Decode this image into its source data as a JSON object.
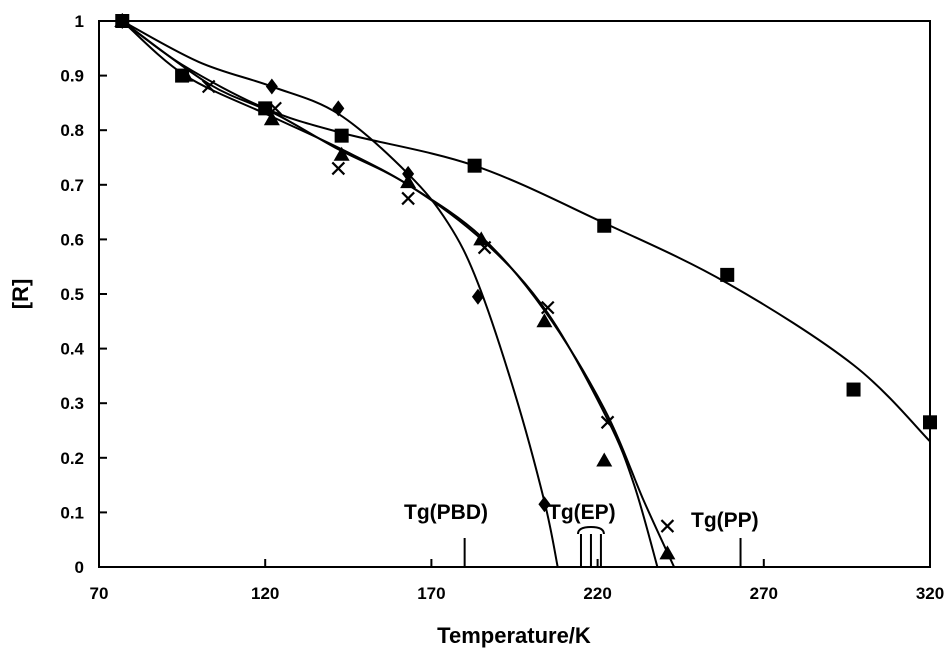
{
  "chart_data": {
    "type": "scatter",
    "xlabel": "Temperature/K",
    "ylabel": "[R]",
    "xlim": [
      70,
      320
    ],
    "ylim": [
      0,
      1
    ],
    "x_ticks": [
      "70",
      "120",
      "170",
      "220",
      "270",
      "320"
    ],
    "y_ticks": [
      "0",
      "0.1",
      "0.2",
      "0.3",
      "0.4",
      "0.5",
      "0.6",
      "0.7",
      "0.8",
      "0.9",
      "1"
    ],
    "grid": false,
    "legend": "none",
    "series": [
      {
        "marker": "square",
        "points": [
          [
            77,
            1.0
          ],
          [
            95,
            0.9
          ],
          [
            120,
            0.84
          ],
          [
            143,
            0.79
          ],
          [
            183,
            0.735
          ],
          [
            222,
            0.625
          ],
          [
            259,
            0.535
          ],
          [
            297,
            0.325
          ],
          [
            320,
            0.265
          ]
        ],
        "curve": [
          [
            77,
            1.0
          ],
          [
            95,
            0.92
          ],
          [
            120,
            0.84
          ],
          [
            143,
            0.795
          ],
          [
            183,
            0.735
          ],
          [
            222,
            0.63
          ],
          [
            259,
            0.52
          ],
          [
            297,
            0.37
          ],
          [
            320,
            0.23
          ]
        ]
      },
      {
        "marker": "diamond",
        "points": [
          [
            77,
            1.0
          ],
          [
            122,
            0.88
          ],
          [
            142,
            0.84
          ],
          [
            163,
            0.72
          ],
          [
            184,
            0.495
          ],
          [
            204,
            0.115
          ]
        ],
        "curve": [
          [
            77,
            1.0
          ],
          [
            100,
            0.925
          ],
          [
            122,
            0.88
          ],
          [
            142,
            0.83
          ],
          [
            163,
            0.72
          ],
          [
            175,
            0.63
          ],
          [
            184,
            0.52
          ],
          [
            195,
            0.32
          ],
          [
            204,
            0.12
          ],
          [
            208,
            0.0
          ]
        ]
      },
      {
        "marker": "triangle",
        "points": [
          [
            77,
            1.0
          ],
          [
            96,
            0.9
          ],
          [
            122,
            0.82
          ],
          [
            143,
            0.755
          ],
          [
            163,
            0.705
          ],
          [
            185,
            0.6
          ],
          [
            204,
            0.45
          ],
          [
            222,
            0.195
          ],
          [
            241,
            0.025
          ]
        ],
        "curve": [
          [
            77,
            1.0
          ],
          [
            96,
            0.9
          ],
          [
            122,
            0.825
          ],
          [
            143,
            0.765
          ],
          [
            163,
            0.7
          ],
          [
            185,
            0.605
          ],
          [
            204,
            0.47
          ],
          [
            222,
            0.29
          ],
          [
            234,
            0.12
          ],
          [
            243,
            0.0
          ]
        ]
      },
      {
        "marker": "cross",
        "points": [
          [
            77,
            1.0
          ],
          [
            103,
            0.88
          ],
          [
            123,
            0.84
          ],
          [
            142,
            0.73
          ],
          [
            163,
            0.675
          ],
          [
            186,
            0.585
          ],
          [
            205,
            0.475
          ],
          [
            223,
            0.265
          ],
          [
            241,
            0.075
          ]
        ],
        "curve": [
          [
            77,
            1.0
          ],
          [
            103,
            0.885
          ],
          [
            123,
            0.83
          ],
          [
            142,
            0.765
          ],
          [
            163,
            0.7
          ],
          [
            186,
            0.595
          ],
          [
            205,
            0.465
          ],
          [
            223,
            0.27
          ],
          [
            231,
            0.15
          ],
          [
            238,
            0.0
          ]
        ]
      }
    ],
    "annotations": [
      {
        "text": "Tg(PBD)",
        "x": 180
      },
      {
        "text": "Tg(EP)",
        "x": [
          215,
          218,
          221
        ]
      },
      {
        "text": "Tg(PP)",
        "x": 263
      }
    ]
  }
}
